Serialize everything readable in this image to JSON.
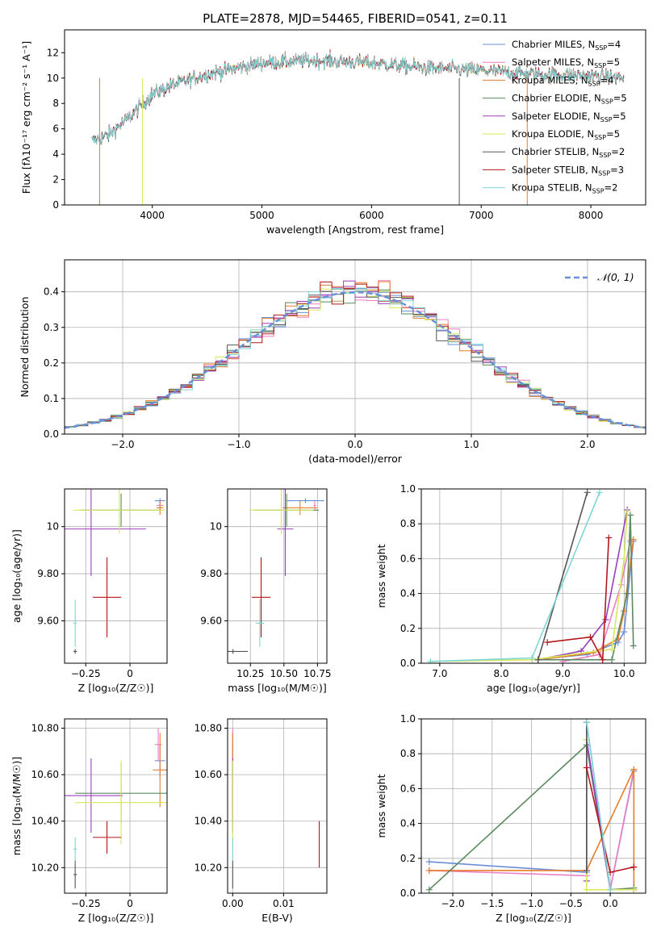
{
  "figure_title": "PLATE=2878, MJD=54465, FIBERID=0541, z=0.11",
  "colors": {
    "series": [
      "#6a8fd8",
      "#e97fc6",
      "#e87d2a",
      "#5a8a5e",
      "#9b3fbf",
      "#d7e85a",
      "#555555",
      "#b5161c",
      "#7fd6d6"
    ]
  },
  "chart_data": [
    {
      "id": "spectrum",
      "type": "line",
      "xlabel": "wavelength [Angstrom, rest frame]",
      "ylabel": "Flux [fλ10⁻¹⁷ erg cm⁻² s⁻¹ A⁻¹]",
      "xlim": [
        3200,
        8500
      ],
      "ylim": [
        0,
        13.8
      ],
      "xticks": [
        4000,
        5000,
        6000,
        7000,
        8000
      ],
      "yticks": [
        0,
        2,
        4,
        6,
        8,
        10,
        12
      ],
      "grid": false,
      "legend": "top-right",
      "x_range_data": [
        3450,
        8300
      ],
      "continuum": {
        "x": [
          3450,
          3600,
          3800,
          4000,
          4200,
          4500,
          5000,
          5500,
          6000,
          6500,
          7000,
          7500,
          8000,
          8300
        ],
        "y": [
          5.0,
          5.5,
          7.0,
          8.7,
          9.5,
          10.3,
          11.2,
          11.4,
          11.2,
          10.8,
          10.6,
          10.3,
          10.2,
          10.0
        ]
      },
      "series": [
        {
          "name": "Chabrier MILES, N_SSP=4",
          "label_main": "Chabrier MILES, N",
          "label_sub": "SSP",
          "label_end": "=4"
        },
        {
          "name": "Salpeter MILES, N_SSP=5",
          "label_main": "Salpeter MILES, N",
          "label_sub": "SSP",
          "label_end": "=5"
        },
        {
          "name": "Kroupa MILES, N_SSP=4",
          "label_main": "Kroupa MILES, N",
          "label_sub": "SSP",
          "label_end": "=4"
        },
        {
          "name": "Chabrier ELODIE, N_SSP=5",
          "label_main": "Chabrier ELODIE, N",
          "label_sub": "SSP",
          "label_end": "=5"
        },
        {
          "name": "Salpeter ELODIE, N_SSP=5",
          "label_main": "Salpeter ELODIE, N",
          "label_sub": "SSP",
          "label_end": "=5"
        },
        {
          "name": "Kroupa ELODIE, N_SSP=5",
          "label_main": "Kroupa ELODIE, N",
          "label_sub": "SSP",
          "label_end": "=5"
        },
        {
          "name": "Chabrier STELIB, N_SSP=2",
          "label_main": "Chabrier STELIB, N",
          "label_sub": "SSP",
          "label_end": "=2"
        },
        {
          "name": "Salpeter STELIB, N_SSP=3",
          "label_main": "Salpeter STELIB, N",
          "label_sub": "SSP",
          "label_end": "=3"
        },
        {
          "name": "Kroupa STELIB, N_SSP=2",
          "label_main": "Kroupa STELIB, N",
          "label_sub": "SSP",
          "label_end": "=2"
        }
      ]
    },
    {
      "id": "residuals",
      "type": "line",
      "xlabel": "(data-model)/error",
      "ylabel": "Normed distribution",
      "xlim": [
        -2.5,
        2.5
      ],
      "ylim": [
        0,
        0.49
      ],
      "xticks": [
        -2,
        -1,
        0,
        1,
        2
      ],
      "yticks": [
        0.0,
        0.1,
        0.2,
        0.3,
        0.4
      ],
      "grid": true,
      "legend": "top-right",
      "reference": {
        "name": "N(0,1)",
        "label": "𝒩(0, 1)",
        "mean": 0,
        "sigma": 1
      },
      "bin_width": 0.1,
      "hist_bins": [
        -2.5,
        2.5
      ]
    },
    {
      "id": "z-age",
      "type": "errorbar",
      "xlabel": "Z [log₁₀(Z/Z☉)]",
      "ylabel": "age  [log₁₀(age/yr)]",
      "xlim": [
        -0.37,
        0.21
      ],
      "ylim": [
        9.42,
        10.16
      ],
      "xticks": [
        -0.25,
        0.0
      ],
      "yticks": [
        9.6,
        9.8,
        10.0
      ],
      "grid": true,
      "points": [
        {
          "x": 0.17,
          "y": 10.11,
          "xerr": 0.03,
          "yerr": 0.01
        },
        {
          "x": 0.17,
          "y": 10.09,
          "xerr": 0.02,
          "yerr": 0.02
        },
        {
          "x": 0.17,
          "y": 10.08,
          "xerr": 0.02,
          "yerr": 0.03
        },
        {
          "x": -0.05,
          "y": 10.07,
          "xerr": 0.23,
          "yerr": 0.07
        },
        {
          "x": -0.22,
          "y": 9.99,
          "xerr": 0.31,
          "yerr": 0.2
        },
        {
          "x": -0.06,
          "y": 10.07,
          "xerr": 0.26,
          "yerr": 0.1
        },
        {
          "x": -0.31,
          "y": 9.47,
          "xerr": 0.01,
          "yerr": 0.01
        },
        {
          "x": -0.13,
          "y": 9.7,
          "xerr": 0.08,
          "yerr": 0.17
        },
        {
          "x": -0.31,
          "y": 9.59,
          "xerr": 0.01,
          "yerr": 0.1
        }
      ]
    },
    {
      "id": "mass-age",
      "type": "errorbar",
      "xlabel": "mass [log₁₀(M/M☉)]",
      "ylabel": "",
      "xlim": [
        10.08,
        10.82
      ],
      "ylim": [
        9.42,
        10.16
      ],
      "xticks": [
        10.25,
        10.5,
        10.75
      ],
      "yticks": [
        9.6,
        9.8,
        10.0
      ],
      "grid": true,
      "points": [
        {
          "x": 10.66,
          "y": 10.11,
          "xerr": 0.14,
          "yerr": 0.01
        },
        {
          "x": 10.73,
          "y": 10.09,
          "xerr": 0.01,
          "yerr": 0.02
        },
        {
          "x": 10.62,
          "y": 10.08,
          "xerr": 0.13,
          "yerr": 0.03
        },
        {
          "x": 10.52,
          "y": 10.07,
          "xerr": 0.24,
          "yerr": 0.07
        },
        {
          "x": 10.51,
          "y": 9.99,
          "xerr": 0.06,
          "yerr": 0.2
        },
        {
          "x": 10.48,
          "y": 10.07,
          "xerr": 0.24,
          "yerr": 0.1
        },
        {
          "x": 10.12,
          "y": 9.47,
          "xerr": 0.11,
          "yerr": 0.01
        },
        {
          "x": 10.33,
          "y": 9.7,
          "xerr": 0.07,
          "yerr": 0.17
        },
        {
          "x": 10.32,
          "y": 9.59,
          "xerr": 0.03,
          "yerr": 0.1
        }
      ]
    },
    {
      "id": "age-weight",
      "type": "line",
      "xlabel": "age  [log₁₀(age/yr)]",
      "ylabel": "mass weight",
      "xlim": [
        6.7,
        10.35
      ],
      "ylim": [
        0,
        1.0
      ],
      "xticks": [
        7,
        8,
        9,
        10
      ],
      "yticks": [
        0.0,
        0.2,
        0.4,
        0.6,
        0.8,
        1.0
      ],
      "grid": true,
      "series": [
        {
          "x": [
            8.5,
            9.4,
            9.9,
            10.0,
            10.15
          ],
          "y": [
            0.02,
            0.05,
            0.12,
            0.18,
            0.7
          ]
        },
        {
          "x": [
            9.0,
            9.6,
            9.95,
            10.1
          ],
          "y": [
            0.01,
            0.05,
            0.45,
            0.7
          ]
        },
        {
          "x": [
            8.6,
            9.5,
            9.9,
            10.0,
            10.15
          ],
          "y": [
            0.02,
            0.06,
            0.14,
            0.3,
            0.71
          ]
        },
        {
          "x": [
            8.6,
            9.8,
            10.05,
            10.1,
            10.15
          ],
          "y": [
            0.02,
            0.02,
            0.4,
            0.85,
            0.1
          ]
        },
        {
          "x": [
            8.6,
            9.3,
            9.7,
            10.05
          ],
          "y": [
            0.02,
            0.07,
            0.25,
            0.88
          ]
        },
        {
          "x": [
            6.85,
            8.5,
            9.8,
            10.0,
            10.05
          ],
          "y": [
            0.01,
            0.02,
            0.08,
            0.6,
            0.87
          ]
        },
        {
          "x": [
            8.6,
            9.4
          ],
          "y": [
            0.02,
            0.98
          ]
        },
        {
          "x": [
            8.75,
            9.45,
            9.65,
            9.75
          ],
          "y": [
            0.12,
            0.15,
            0.02,
            0.72
          ]
        },
        {
          "x": [
            6.85,
            8.5,
            9.6
          ],
          "y": [
            0.01,
            0.03,
            0.98
          ]
        }
      ]
    },
    {
      "id": "z-mass",
      "type": "errorbar",
      "xlabel": "Z [log₁₀(Z/Z☉)]",
      "ylabel": "mass [log₁₀(M/M☉)]",
      "xlim": [
        -0.37,
        0.21
      ],
      "ylim": [
        10.09,
        10.84
      ],
      "xticks": [
        -0.25,
        0.0
      ],
      "yticks": [
        10.2,
        10.4,
        10.6,
        10.8
      ],
      "grid": true,
      "points": [
        {
          "x": 0.17,
          "y": 10.66,
          "xerr": 0.03,
          "yerr": 0.07
        },
        {
          "x": 0.16,
          "y": 10.73,
          "xerr": 0.02,
          "yerr": 0.07
        },
        {
          "x": 0.17,
          "y": 10.62,
          "xerr": 0.04,
          "yerr": 0.16
        },
        {
          "x": -0.05,
          "y": 10.52,
          "xerr": 0.26,
          "yerr": 0.13
        },
        {
          "x": -0.22,
          "y": 10.51,
          "xerr": 0.18,
          "yerr": 0.16
        },
        {
          "x": -0.05,
          "y": 10.48,
          "xerr": 0.26,
          "yerr": 0.18
        },
        {
          "x": -0.31,
          "y": 10.17,
          "xerr": 0.01,
          "yerr": 0.06
        },
        {
          "x": -0.13,
          "y": 10.33,
          "xerr": 0.08,
          "yerr": 0.07
        },
        {
          "x": -0.31,
          "y": 10.28,
          "xerr": 0.01,
          "yerr": 0.05
        }
      ]
    },
    {
      "id": "ebv-mass",
      "type": "errorbar",
      "xlabel": "E(B-V)",
      "ylabel": "",
      "xlim": [
        -0.001,
        0.0185
      ],
      "ylim": [
        10.09,
        10.84
      ],
      "xticks": [
        0.0,
        0.01
      ],
      "yticks": [
        10.2,
        10.4,
        10.6,
        10.8
      ],
      "grid": true,
      "points": [
        {
          "x": 0.0,
          "y": 10.66,
          "xerr": 0.0,
          "yerr": 0.07
        },
        {
          "x": 0.0,
          "y": 10.73,
          "xerr": 0.0,
          "yerr": 0.07
        },
        {
          "x": 0.0,
          "y": 10.62,
          "xerr": 0.0,
          "yerr": 0.16
        },
        {
          "x": 0.0,
          "y": 10.52,
          "xerr": 0.0,
          "yerr": 0.13
        },
        {
          "x": 0.0,
          "y": 10.51,
          "xerr": 0.0,
          "yerr": 0.16
        },
        {
          "x": 0.0,
          "y": 10.48,
          "xerr": 0.0,
          "yerr": 0.18
        },
        {
          "x": 0.0,
          "y": 10.17,
          "xerr": 0.0,
          "yerr": 0.06
        },
        {
          "x": 0.017,
          "y": 10.3,
          "xerr": 0.0,
          "yerr": 0.1
        },
        {
          "x": 0.0,
          "y": 10.28,
          "xerr": 0.0,
          "yerr": 0.05
        }
      ]
    },
    {
      "id": "z-weight",
      "type": "line",
      "xlabel": "Z [log₁₀(Z/Z☉)]",
      "ylabel": "mass weight",
      "xlim": [
        -2.4,
        0.45
      ],
      "ylim": [
        0,
        1.0
      ],
      "xticks": [
        -2.0,
        -1.5,
        -1.0,
        -0.5,
        0.0
      ],
      "yticks": [
        0.0,
        0.2,
        0.4,
        0.6,
        0.8,
        1.0
      ],
      "grid": true,
      "series": [
        {
          "x": [
            -2.3,
            -0.3,
            -0.3,
            0.0,
            0.3
          ],
          "y": [
            0.18,
            0.12,
            0.98,
            0.02,
            0.7
          ]
        },
        {
          "x": [
            -2.3,
            -0.3,
            -0.3,
            0.0,
            0.3
          ],
          "y": [
            0.13,
            0.1,
            0.88,
            0.02,
            0.71
          ]
        },
        {
          "x": [
            -2.3,
            -0.3,
            0.3,
            0.3
          ],
          "y": [
            0.13,
            0.13,
            0.71,
            0.02
          ]
        },
        {
          "x": [
            -2.3,
            -0.3,
            0.0,
            0.3
          ],
          "y": [
            0.02,
            0.85,
            0.02,
            0.03
          ]
        },
        {
          "x": [
            -0.3,
            -0.3,
            0.0,
            0.3
          ],
          "y": [
            0.07,
            0.88,
            0.02,
            0.02
          ]
        },
        {
          "x": [
            -0.3,
            -0.3,
            0.0,
            0.3
          ],
          "y": [
            0.88,
            0.02,
            0.02,
            0.02
          ]
        },
        {
          "x": [
            -0.3,
            -0.3
          ],
          "y": [
            0.13,
            0.98
          ]
        },
        {
          "x": [
            -0.3,
            0.0,
            0.3
          ],
          "y": [
            0.72,
            0.12,
            0.15
          ]
        },
        {
          "x": [
            -0.3,
            0.0
          ],
          "y": [
            0.98,
            0.02
          ]
        }
      ]
    }
  ]
}
